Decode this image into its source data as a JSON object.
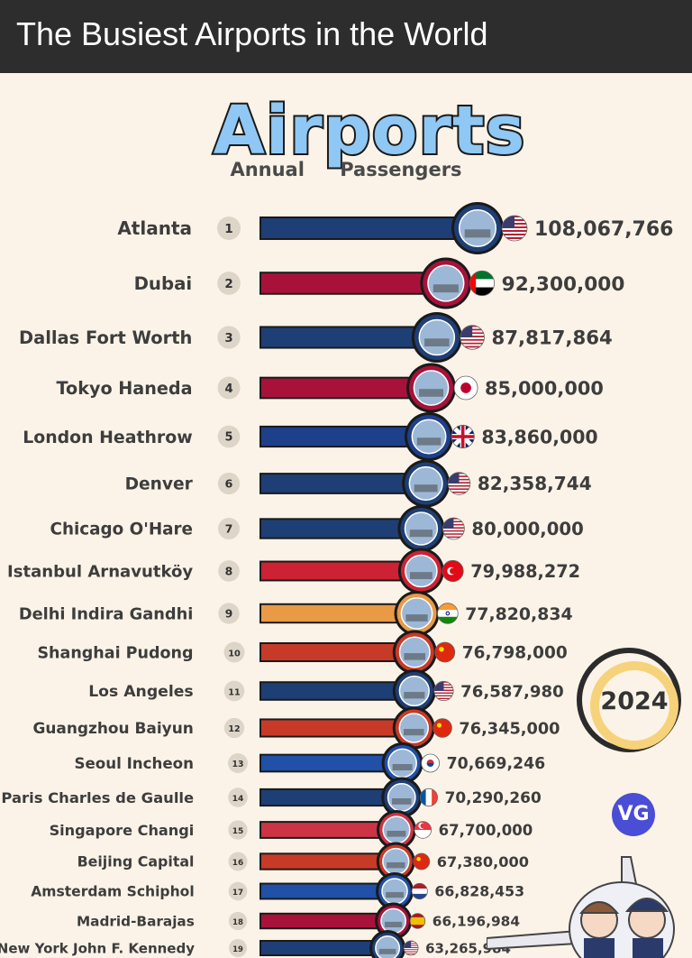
{
  "header": {
    "title": "The Busiest Airports in the World"
  },
  "logo": {
    "word": "Airports",
    "sub_left": "Annual",
    "sub_right": "Passengers"
  },
  "badge": {
    "year": "2024"
  },
  "watermark": {
    "text": "VG"
  },
  "chart_data": {
    "type": "bar",
    "orientation": "horizontal",
    "title": "Airports",
    "subtitle": "Annual Passengers",
    "categories": [
      "Atlanta",
      "Dubai",
      "Dallas Fort Worth",
      "Tokyo Haneda",
      "London Heathrow",
      "Denver",
      "Chicago O'Hare",
      "Istanbul Arnavutköy",
      "Delhi Indira Gandhi",
      "Shanghai Pudong",
      "Los Angeles",
      "Guangzhou Baiyun",
      "Seoul Incheon",
      "Paris Charles de Gaulle",
      "Singapore Changi",
      "Beijing Capital",
      "Amsterdam Schiphol",
      "Madrid-Barajas",
      "New York John F. Kennedy"
    ],
    "ranks": [
      "1",
      "2",
      "3",
      "4",
      "5",
      "6",
      "7",
      "8",
      "9",
      "10",
      "11",
      "12",
      "13",
      "14",
      "15",
      "16",
      "17",
      "18",
      "19"
    ],
    "values": [
      108067766,
      92300000,
      87817864,
      85000000,
      83860000,
      82358744,
      80000000,
      79988272,
      77820834,
      76798000,
      76587980,
      76345000,
      70669246,
      70290260,
      67700000,
      67380000,
      66828453,
      66196984,
      63265984
    ],
    "value_labels": [
      "108,067,766",
      "92,300,000",
      "87,817,864",
      "85,000,000",
      "83,860,000",
      "82,358,744",
      "80,000,000",
      "79,988,272",
      "77,820,834",
      "76,798,000",
      "76,587,980",
      "76,345,000",
      "70,669,246",
      "70,290,260",
      "67,700,000",
      "67,380,000",
      "66,828,453",
      "66,196,984",
      "63,265,984"
    ],
    "bar_colors": [
      "#1e3f75",
      "#a8123a",
      "#1e3f75",
      "#a8123a",
      "#1e3f8a",
      "#1e3f75",
      "#1e3f75",
      "#cc2233",
      "#e89a45",
      "#c83a28",
      "#1e3f75",
      "#c83a28",
      "#2050a8",
      "#1e3f75",
      "#cc3344",
      "#c83a28",
      "#2050a8",
      "#a8123a",
      "#1e3f75"
    ],
    "flags": [
      "us",
      "ae",
      "us",
      "jp",
      "gb",
      "us",
      "us",
      "tr",
      "in",
      "cn",
      "us",
      "cn",
      "kr",
      "fr",
      "sg",
      "cn",
      "nl",
      "es",
      "us"
    ],
    "xlim": [
      0,
      108067766
    ]
  }
}
